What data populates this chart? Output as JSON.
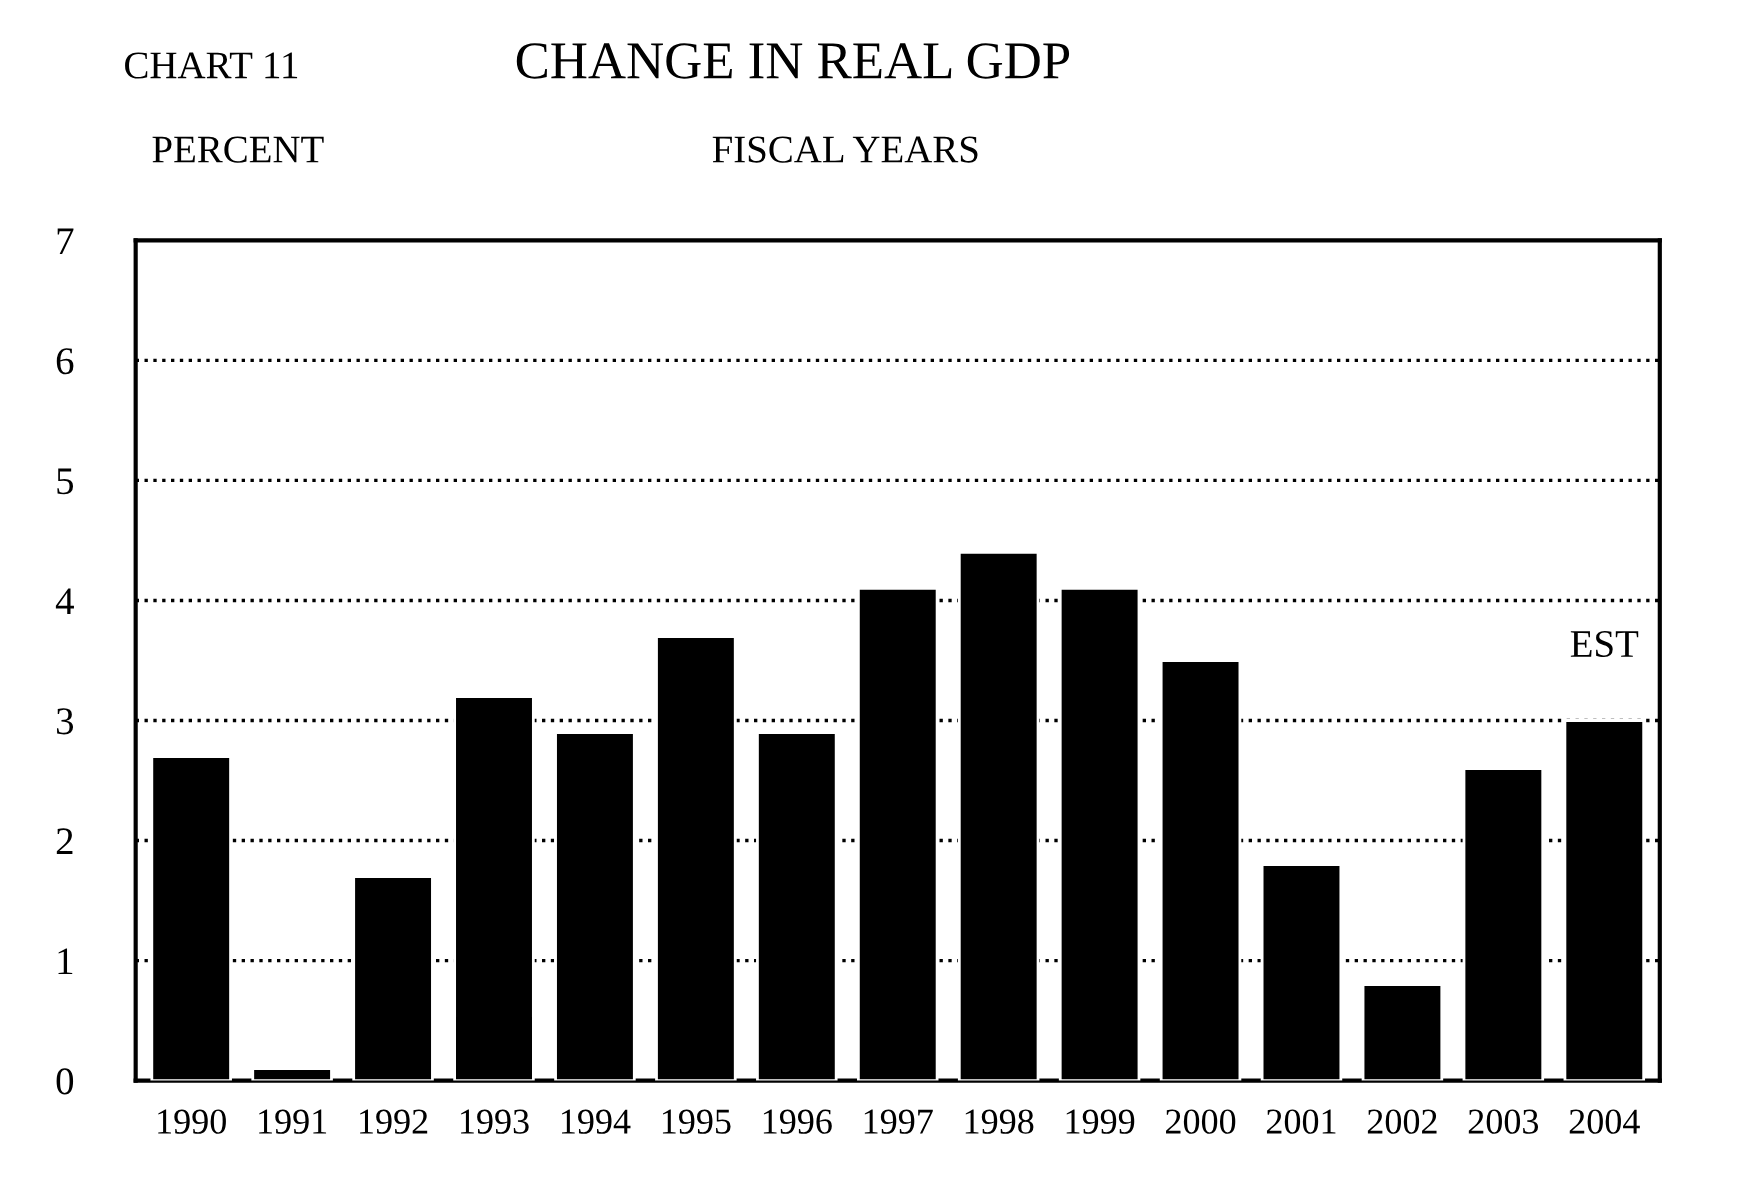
{
  "chart_data": {
    "type": "bar",
    "title": "CHANGE IN REAL GDP",
    "subtitle": "FISCAL YEARS",
    "ylabel": "PERCENT",
    "annotations": [
      "CHART 11",
      {
        "text": "EST",
        "x": "2004",
        "y": 3.0
      }
    ],
    "categories": [
      "1990",
      "1991",
      "1992",
      "1993",
      "1994",
      "1995",
      "1996",
      "1997",
      "1998",
      "1999",
      "2000",
      "2001",
      "2002",
      "2003",
      "2004"
    ],
    "values": [
      2.7,
      0.1,
      1.7,
      3.2,
      2.9,
      3.7,
      2.9,
      4.1,
      4.4,
      4.1,
      3.5,
      1.8,
      0.8,
      2.6,
      3.0
    ],
    "color": "#000000",
    "ylim": [
      0,
      7
    ],
    "yticks": [
      0,
      1,
      2,
      3,
      4,
      5,
      6,
      7
    ],
    "grid": "y",
    "line_style": "dotted"
  }
}
